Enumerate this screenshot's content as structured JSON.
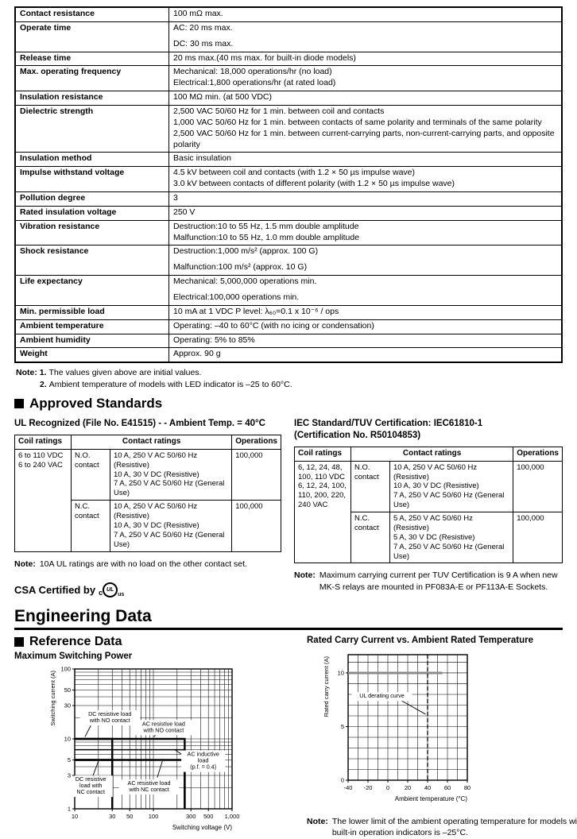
{
  "spec_table": {
    "rows": [
      {
        "label": "Contact resistance",
        "lines": [
          "100 mΩ max."
        ]
      },
      {
        "label": "Operate time",
        "lines": [
          "AC: 20 ms max.",
          "DC: 30 ms max."
        ],
        "spread": true
      },
      {
        "label": "Release time",
        "lines": [
          "20 ms max.(40 ms max. for built-in diode models)"
        ]
      },
      {
        "label": "Max. operating frequency",
        "lines": [
          "Mechanical: 18,000 operations/hr (no load)",
          "Electrical:1,800 operations/hr (at rated load)"
        ]
      },
      {
        "label": "Insulation resistance",
        "lines": [
          "100 MΩ min. (at 500 VDC)"
        ]
      },
      {
        "label": "Dielectric strength",
        "lines": [
          "2,500 VAC 50/60 Hz for 1 min. between coil and contacts",
          "1,000 VAC 50/60 Hz for 1 min. between contacts of same polarity and terminals of the same polarity",
          "2,500 VAC 50/60 Hz for 1 min. between current-carrying parts, non-current-carrying parts, and opposite polarity"
        ]
      },
      {
        "label": "Insulation method",
        "lines": [
          "Basic insulation"
        ]
      },
      {
        "label": "Impulse withstand voltage",
        "lines": [
          "4.5 kV between coil and contacts (with 1.2 × 50 µs impulse wave)",
          "3.0 kV between contacts of different polarity (with 1.2 × 50 µs impulse wave)"
        ]
      },
      {
        "label": "Pollution degree",
        "lines": [
          "3"
        ]
      },
      {
        "label": "Rated insulation voltage",
        "lines": [
          "250 V"
        ]
      },
      {
        "label": "Vibration resistance",
        "lines": [
          "Destruction:10 to 55 Hz, 1.5 mm double amplitude",
          "Malfunction:10 to 55 Hz, 1.0 mm double amplitude"
        ]
      },
      {
        "label": "Shock resistance",
        "lines": [
          "Destruction:1,000 m/s² (approx. 100 G)",
          "Malfunction:100 m/s² (approx. 10 G)"
        ],
        "spread": true
      },
      {
        "label": "Life expectancy",
        "lines": [
          "Mechanical: 5,000,000 operations min.",
          "Electrical:100,000 operations min."
        ],
        "spread": true
      },
      {
        "label": "Min. permissible load",
        "lines": [
          "10 mA at 1 VDC P level: λ₆₀=0.1 x 10⁻⁶ / ops"
        ]
      },
      {
        "label": "Ambient temperature",
        "lines": [
          "Operating: –40 to 60°C (with no icing or condensation)"
        ]
      },
      {
        "label": "Ambient humidity",
        "lines": [
          "Operating: 5% to 85%"
        ]
      },
      {
        "label": "Weight",
        "lines": [
          "Approx. 90 g"
        ]
      }
    ]
  },
  "notes": {
    "label": "Note:",
    "items": [
      {
        "num": "1.",
        "text": "The values given above are initial values."
      },
      {
        "num": "2.",
        "text": "Ambient temperature of models with LED indicator is –25 to 60°C."
      }
    ]
  },
  "approved": {
    "title": "Approved Standards",
    "ul": {
      "subtitle": "UL Recognized (File No. E41515) - - Ambient Temp. = 40°C",
      "headers": [
        "Coil ratings",
        "Contact ratings",
        "Operations"
      ],
      "coil_lines": [
        "6 to 110 VDC",
        "6 to 240 VAC"
      ],
      "rows": [
        {
          "contact_lines": [
            "N.O.",
            "contact"
          ],
          "rating_lines": [
            "10 A, 250 V AC 50/60 Hz (Resistive)",
            "10 A, 30 V DC (Resistive)",
            "7 A, 250 V AC 50/60 Hz (General Use)"
          ],
          "operations": "100,000"
        },
        {
          "contact_lines": [
            "N.C.",
            "contact"
          ],
          "rating_lines": [
            "10 A, 250 V AC 50/60 Hz (Resistive)",
            "10 A, 30 V DC (Resistive)",
            "7 A, 250 V AC 50/60 Hz (General Use)"
          ],
          "operations": "100,000"
        }
      ],
      "note_label": "Note:",
      "note": "10A UL ratings are with no load on the other contact set."
    },
    "csa": {
      "label": "CSA Certified by",
      "mark_c": "c",
      "mark_ul": "UL",
      "mark_us": "us"
    },
    "iec": {
      "subtitle_line1": "IEC Standard/TUV Certification: IEC61810-1",
      "subtitle_line2": "(Certification No. R50104853)",
      "headers": [
        "Coil ratings",
        "Contact ratings",
        "Operations"
      ],
      "coil_lines": [
        "6, 12, 24, 48,",
        "100, 110 VDC",
        "6, 12, 24, 100,",
        "110, 200, 220,",
        "240 VAC"
      ],
      "rows": [
        {
          "contact_lines": [
            "N.O.",
            "contact"
          ],
          "rating_lines": [
            "10 A, 250 V AC 50/60 Hz (Resistive)",
            "10 A, 30 V DC (Resistive)",
            "7 A, 250 V AC 50/60 Hz (General Use)"
          ],
          "operations": "100,000"
        },
        {
          "contact_lines": [
            "N.C.",
            "contact"
          ],
          "rating_lines": [
            "5 A, 250 V AC 50/60 Hz (Resistive)",
            "5 A, 30 V DC (Resistive)",
            "7 A, 250 V AC 50/60 Hz (General Use)"
          ],
          "operations": "100,000"
        }
      ],
      "note_label": "Note:",
      "note": "Maximum carrying current per TUV Certification is 9 A when new MK-S relays are mounted in PF083A-E or PF113A-E Sockets."
    }
  },
  "engineering": {
    "title": "Engineering Data",
    "reference_title": "Reference Data"
  },
  "chart_data": [
    {
      "type": "line",
      "title": "Maximum Switching Power",
      "xlabel": "Switching voltage (V)",
      "ylabel": "Switching current (A)",
      "xscale": "log",
      "yscale": "log",
      "xlim": [
        10,
        1000
      ],
      "ylim": [
        1,
        100
      ],
      "xticks": [
        10,
        30,
        50,
        100,
        300,
        500,
        1000
      ],
      "xtick_labels": [
        "10",
        "30",
        "50",
        "100",
        "300",
        "500",
        "1,000"
      ],
      "yticks": [
        100,
        50,
        30,
        10,
        5,
        3,
        1
      ],
      "grid": true,
      "series": [
        {
          "name": "DC resistive load with NO contact",
          "points": [
            [
              10,
              10
            ],
            [
              30,
              10
            ],
            [
              30,
              1
            ]
          ],
          "width": 2.4
        },
        {
          "name": "AC resistive load with NO contact",
          "points": [
            [
              10,
              10
            ],
            [
              250,
              10
            ],
            [
              250,
              1
            ]
          ],
          "width": 2.4
        },
        {
          "name": "AC inductive load (p.f. = 0.4)",
          "points": [
            [
              10,
              7
            ],
            [
              250,
              7
            ]
          ],
          "width": 1.6
        },
        {
          "name": "DC resistive load with NC contact",
          "points": [
            [
              10,
              5
            ],
            [
              30,
              5
            ],
            [
              30,
              1
            ]
          ],
          "width": 2.4
        },
        {
          "name": "AC resistive load with NC contact",
          "points": [
            [
              10,
              5
            ],
            [
              250,
              5
            ],
            [
              250,
              1
            ]
          ],
          "width": 2.4
        }
      ],
      "annotations": [
        {
          "lines": [
            "DC resistive load",
            "with NO contact"
          ],
          "x": 28,
          "y": 20,
          "leader": [
            [
              16,
              15.5
            ],
            [
              13.5,
              10.7
            ]
          ]
        },
        {
          "lines": [
            "AC resistive load",
            "with NO contact"
          ],
          "x": 135,
          "y": 14.5,
          "leader": [
            [
              110,
              12
            ],
            [
              102,
              10.7
            ]
          ]
        },
        {
          "lines": [
            "AC inductive",
            "load",
            "(p.f. = 0.4)"
          ],
          "x": 430,
          "y": 4.8,
          "leader": [
            [
              235,
              5.9
            ],
            [
              190,
              6.9
            ]
          ]
        },
        {
          "lines": [
            "DC resistive",
            "load with",
            "NC contact"
          ],
          "x": 16,
          "y": 2.1,
          "leader": [
            [
              17,
              2.95
            ],
            [
              20,
              4.8
            ]
          ]
        },
        {
          "lines": [
            "AC resistive load",
            "with NC contact"
          ],
          "x": 88,
          "y": 2.05,
          "leader": [
            [
              112,
              2.8
            ],
            [
              130,
              4.8
            ]
          ]
        }
      ]
    },
    {
      "type": "line",
      "title": "Rated Carry Current vs. Ambient Rated Temperature",
      "xlabel": "Ambient temperature (°C)",
      "ylabel": "Rated carry current (A)",
      "xscale": "linear",
      "yscale": "linear",
      "xlim": [
        -40,
        80
      ],
      "ylim": [
        0,
        11.7
      ],
      "xticks": [
        -40,
        -20,
        0,
        20,
        40,
        60,
        80
      ],
      "xtick_labels": [
        "-40",
        "-20",
        "0",
        "20",
        "40",
        "60",
        "80"
      ],
      "yticks": [
        0,
        5,
        10
      ],
      "grid": true,
      "grid_step_x": 10,
      "grid_step_y": 1,
      "series": [
        {
          "name": "Rated carry current",
          "points": [
            [
              -40,
              10
            ],
            [
              55,
              10
            ]
          ],
          "color": "#8a8a8a",
          "width": 3
        },
        {
          "name": "UL ambient temperature (40°C)",
          "points": [
            [
              40,
              11.7
            ],
            [
              40,
              0
            ]
          ],
          "width": 1.3,
          "dash": "5 3"
        }
      ],
      "annotations": [
        {
          "lines": [
            "UL derating curve"
          ],
          "x": -6,
          "y": 7.8,
          "leader": [
            [
              14,
              7.4
            ],
            [
              38,
              6.15
            ]
          ]
        }
      ]
    }
  ],
  "bottom_note": {
    "label": "Note:",
    "text": "The lower limit of the ambient operating temperature for models with built-in operation indicators is –25°C."
  }
}
